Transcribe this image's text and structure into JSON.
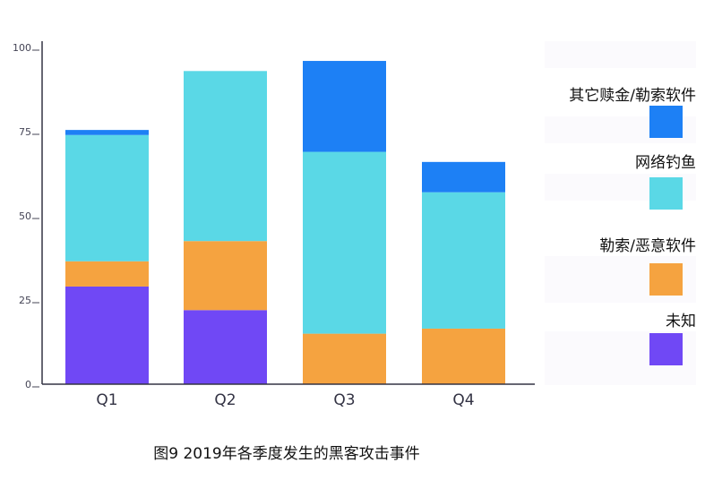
{
  "chart_data": {
    "type": "bar",
    "stacked": true,
    "categories": [
      "Q1",
      "Q2",
      "Q3",
      "Q4"
    ],
    "series": [
      {
        "name": "未知",
        "color": "#7048f5",
        "values": [
          29,
          22,
          0,
          0
        ]
      },
      {
        "name": "勒索/恶意软件",
        "color": "#f5a340",
        "values": [
          7.5,
          20.5,
          15,
          16.5
        ]
      },
      {
        "name": "网络钓鱼",
        "color": "#5ad8e6",
        "values": [
          37.5,
          50.5,
          54,
          40.5
        ]
      },
      {
        "name": "其它赎金/勒索软件",
        "color": "#1d80f5",
        "values": [
          1.5,
          0,
          27,
          9
        ]
      }
    ],
    "ylim": [
      0,
      100
    ],
    "yticks": [
      0,
      25,
      50,
      75,
      100
    ],
    "legend_position": "right",
    "grid": false
  },
  "caption": "图9 2019年各季度发生的黑客攻击事件"
}
